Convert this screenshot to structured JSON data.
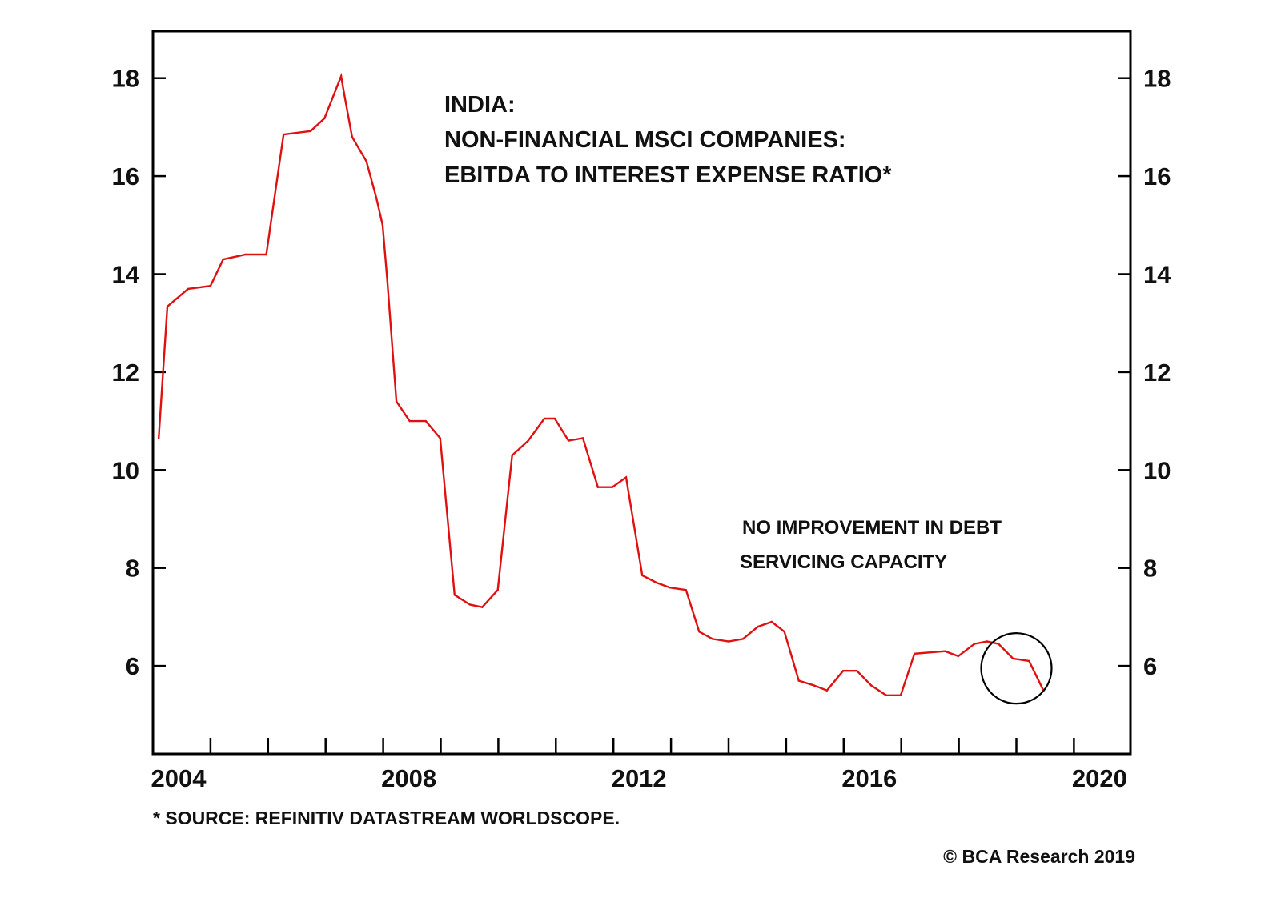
{
  "chart_data": {
    "type": "line",
    "title_lines": [
      "INDIA:",
      "NON-FINANCIAL MSCI COMPANIES:",
      "EBITDA TO INTEREST EXPENSE RATIO*"
    ],
    "xlabel": "",
    "ylabel": "",
    "xlim": [
      2004,
      2020.5
    ],
    "ylim": [
      4.2,
      19.0
    ],
    "x_ticks_major": [
      2004,
      2005,
      2006,
      2007,
      2008,
      2009,
      2010,
      2011,
      2012,
      2013,
      2014,
      2015,
      2016,
      2017,
      2018,
      2019,
      2020
    ],
    "x_tick_labels": [
      {
        "value": 2004,
        "label": "2004"
      },
      {
        "value": 2008,
        "label": "2008"
      },
      {
        "value": 2012,
        "label": "2012"
      },
      {
        "value": 2016,
        "label": "2016"
      },
      {
        "value": 2020,
        "label": "2020"
      }
    ],
    "y_ticks": [
      6,
      8,
      10,
      12,
      14,
      16,
      18
    ],
    "y_tick_labels_left": [
      "6",
      "8",
      "10",
      "12",
      "14",
      "16",
      "18"
    ],
    "y_tick_labels_right": [
      "6",
      "8",
      "10",
      "12",
      "14",
      "16",
      "18"
    ],
    "grid": false,
    "series": [
      {
        "name": "EBITDA to interest expense ratio",
        "color": "#e01010",
        "x": [
          2004.1,
          2004.25,
          2004.61,
          2005.0,
          2005.22,
          2005.61,
          2005.97,
          2006.27,
          2006.74,
          2006.98,
          2007.27,
          2007.32,
          2007.46,
          2007.71,
          2007.88,
          2007.99,
          2008.07,
          2008.23,
          2008.46,
          2008.74,
          2008.99,
          2009.24,
          2009.51,
          2009.72,
          2009.99,
          2010.24,
          2010.52,
          2010.8,
          2010.98,
          2011.22,
          2011.47,
          2011.73,
          2011.98,
          2012.22,
          2012.5,
          2012.75,
          2012.98,
          2013.26,
          2013.49,
          2013.72,
          2014.0,
          2014.25,
          2014.51,
          2014.75,
          2014.97,
          2015.22,
          2015.49,
          2015.71,
          2015.99,
          2016.23,
          2016.48,
          2016.74,
          2016.99,
          2017.23,
          2017.76,
          2017.99,
          2018.27,
          2018.49,
          2018.69,
          2018.94,
          2019.22,
          2019.47
        ],
        "values": [
          10.65,
          13.34,
          13.7,
          13.76,
          14.3,
          14.4,
          14.4,
          16.85,
          16.92,
          17.18,
          18.04,
          17.7,
          16.8,
          16.3,
          15.56,
          15.0,
          13.9,
          11.4,
          11.0,
          11.0,
          10.65,
          7.45,
          7.25,
          7.2,
          7.55,
          10.3,
          10.6,
          11.05,
          11.05,
          10.6,
          10.65,
          9.65,
          9.65,
          9.85,
          7.85,
          7.7,
          7.6,
          7.55,
          6.7,
          6.55,
          6.5,
          6.55,
          6.8,
          6.9,
          6.7,
          5.7,
          5.6,
          5.5,
          5.9,
          5.9,
          5.6,
          5.4,
          5.4,
          6.25,
          6.3,
          6.2,
          6.45,
          6.5,
          6.45,
          6.15,
          6.1,
          5.5
        ]
      }
    ],
    "annotations": [
      {
        "type": "text",
        "lines": [
          "NO IMPROVEMENT IN DEBT",
          "SERVICING CAPACITY"
        ]
      },
      {
        "type": "circle",
        "center_x": 2019.0,
        "center_y": 5.95,
        "color": "#000000"
      }
    ],
    "legend": "none",
    "footnote": "* SOURCE: REFINITIV DATASTREAM WORLDSCOPE.",
    "copyright": "© BCA Research 2019"
  },
  "colors": {
    "line": "#e01010",
    "axis": "#000000",
    "text": "#111111",
    "background": "#ffffff"
  }
}
